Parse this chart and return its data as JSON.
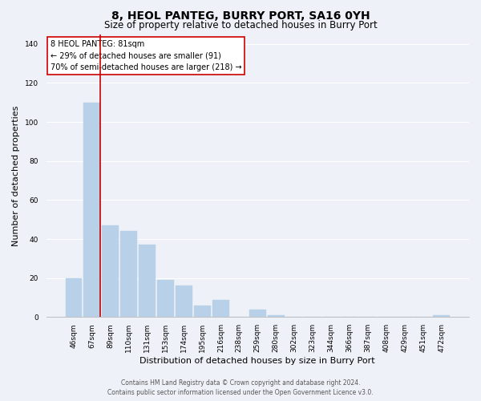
{
  "title": "8, HEOL PANTEG, BURRY PORT, SA16 0YH",
  "subtitle": "Size of property relative to detached houses in Burry Port",
  "xlabel": "Distribution of detached houses by size in Burry Port",
  "ylabel": "Number of detached properties",
  "bar_labels": [
    "46sqm",
    "67sqm",
    "89sqm",
    "110sqm",
    "131sqm",
    "153sqm",
    "174sqm",
    "195sqm",
    "216sqm",
    "238sqm",
    "259sqm",
    "280sqm",
    "302sqm",
    "323sqm",
    "344sqm",
    "366sqm",
    "387sqm",
    "408sqm",
    "429sqm",
    "451sqm",
    "472sqm"
  ],
  "bar_values": [
    20,
    110,
    47,
    44,
    37,
    19,
    16,
    6,
    9,
    0,
    4,
    1,
    0,
    0,
    0,
    0,
    0,
    0,
    0,
    0,
    1
  ],
  "bar_color": "#b8d0e8",
  "vline_x_index": 1,
  "vline_color": "#cc0000",
  "ylim": [
    0,
    145
  ],
  "yticks": [
    0,
    20,
    40,
    60,
    80,
    100,
    120,
    140
  ],
  "annotation_title": "8 HEOL PANTEG: 81sqm",
  "annotation_line1": "← 29% of detached houses are smaller (91)",
  "annotation_line2": "70% of semi-detached houses are larger (218) →",
  "footer1": "Contains HM Land Registry data © Crown copyright and database right 2024.",
  "footer2": "Contains public sector information licensed under the Open Government Licence v3.0.",
  "background_color": "#eef2f8",
  "grid_color": "#ffffff",
  "title_fontsize": 10,
  "subtitle_fontsize": 8.5,
  "xlabel_fontsize": 8,
  "ylabel_fontsize": 8,
  "tick_fontsize": 6.5,
  "annotation_fontsize": 7,
  "footer_fontsize": 5.5
}
